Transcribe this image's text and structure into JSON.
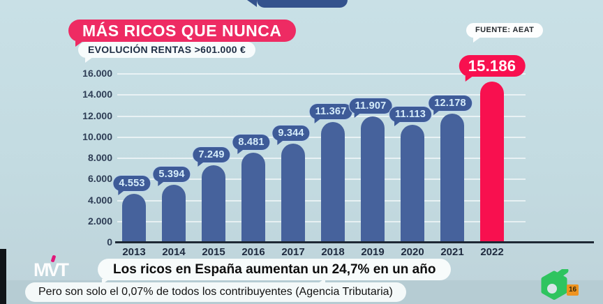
{
  "header": {
    "title": "MÁS RICOS QUE NUNCA",
    "subtitle": "EVOLUCIÓN RENTAS >601.000 €",
    "source": "FUENTE: AEAT"
  },
  "chart_data": {
    "type": "bar",
    "title": "MÁS RICOS QUE NUNCA — EVOLUCIÓN RENTAS >601.000 €",
    "categories": [
      "2013",
      "2014",
      "2015",
      "2016",
      "2017",
      "2018",
      "2019",
      "2020",
      "2021",
      "2022"
    ],
    "values": [
      4553,
      5394,
      7249,
      8481,
      9344,
      11367,
      11907,
      11113,
      12178,
      15186
    ],
    "value_labels": [
      "4.553",
      "5.394",
      "7.249",
      "8.481",
      "9.344",
      "11.367",
      "11.907",
      "11.113",
      "12.178",
      "15.186"
    ],
    "highlight_index": 9,
    "xlabel": "",
    "ylabel": "",
    "ylim": [
      0,
      16000
    ],
    "ytick_step": 2000,
    "ytick_labels": [
      "0",
      "2.000",
      "4.000",
      "6.000",
      "8.000",
      "10.000",
      "12.000",
      "14.000",
      "16.000"
    ],
    "grid": "horizontal",
    "legend": "none",
    "colors": {
      "bar": "#46629C",
      "highlight_bar": "#F8104F",
      "badge_bg": "#3E5B98",
      "badge_text": "#D5ECFA",
      "highlight_badge_bg": "#F8104F",
      "highlight_badge_text": "#FFFFFF"
    }
  },
  "banners": {
    "headline": "Los ricos en España aumentan un 24,7% en un año",
    "subheadline": "Pero son solo el 0,07% de todos los contribuyentes (Agencia Tributaria)"
  },
  "logos": {
    "program": "MVT",
    "channel_icon": "lasexta-6",
    "channel_color": "#2EC45F",
    "age_rating": "16"
  }
}
